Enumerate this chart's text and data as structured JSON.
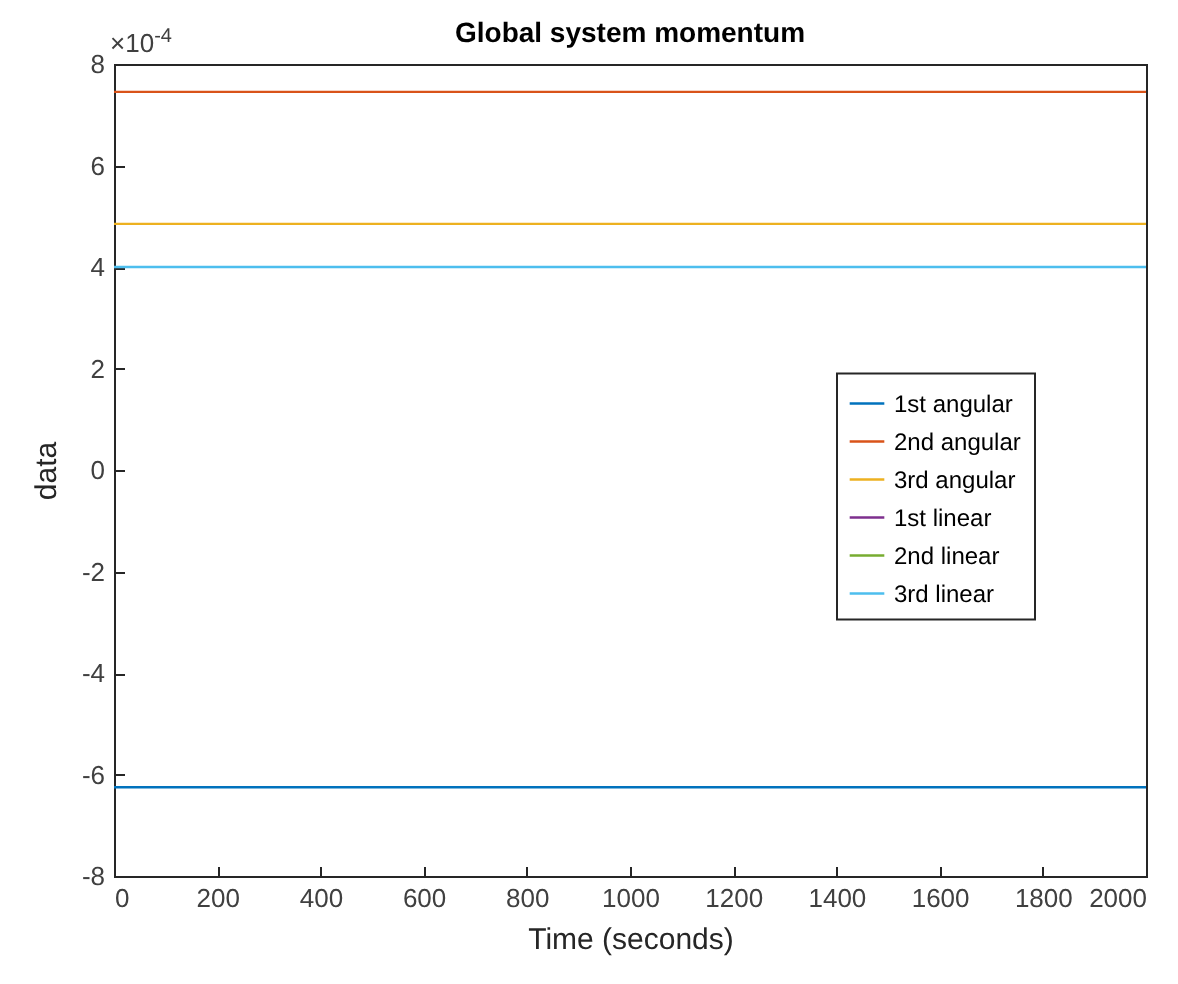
{
  "chart_data": {
    "type": "line",
    "title": "Global system momentum",
    "xlabel": "Time (seconds)",
    "ylabel": "data",
    "annotations": [
      "×10$^{-4}$"
    ],
    "x": [
      0,
      2000
    ],
    "series": [
      {
        "name": "1st angular",
        "color": "#0072bd",
        "values": [
          -6.25,
          -6.25
        ]
      },
      {
        "name": "2nd angular",
        "color": "#d95319",
        "values": [
          7.45,
          7.45
        ]
      },
      {
        "name": "3rd angular",
        "color": "#edb120",
        "values": [
          4.85,
          4.85
        ]
      },
      {
        "name": "1st linear",
        "color": "#7e2f8e",
        "values": [
          null,
          null
        ]
      },
      {
        "name": "2nd linear",
        "color": "#77ac30",
        "values": [
          null,
          null
        ]
      },
      {
        "name": "3rd linear",
        "color": "#4dbeee",
        "values": [
          4.0,
          4.0
        ]
      }
    ],
    "xlim": [
      0,
      2000
    ],
    "xticks": [
      0,
      200,
      400,
      600,
      800,
      1000,
      1200,
      1400,
      1600,
      1800,
      2000
    ],
    "ylim": [
      -8,
      8
    ],
    "yticks": [
      -8,
      -6,
      -4,
      -2,
      0,
      2,
      4,
      6,
      8
    ],
    "grid": false,
    "legend": "right",
    "marker": "none",
    "line_style": "solid"
  }
}
